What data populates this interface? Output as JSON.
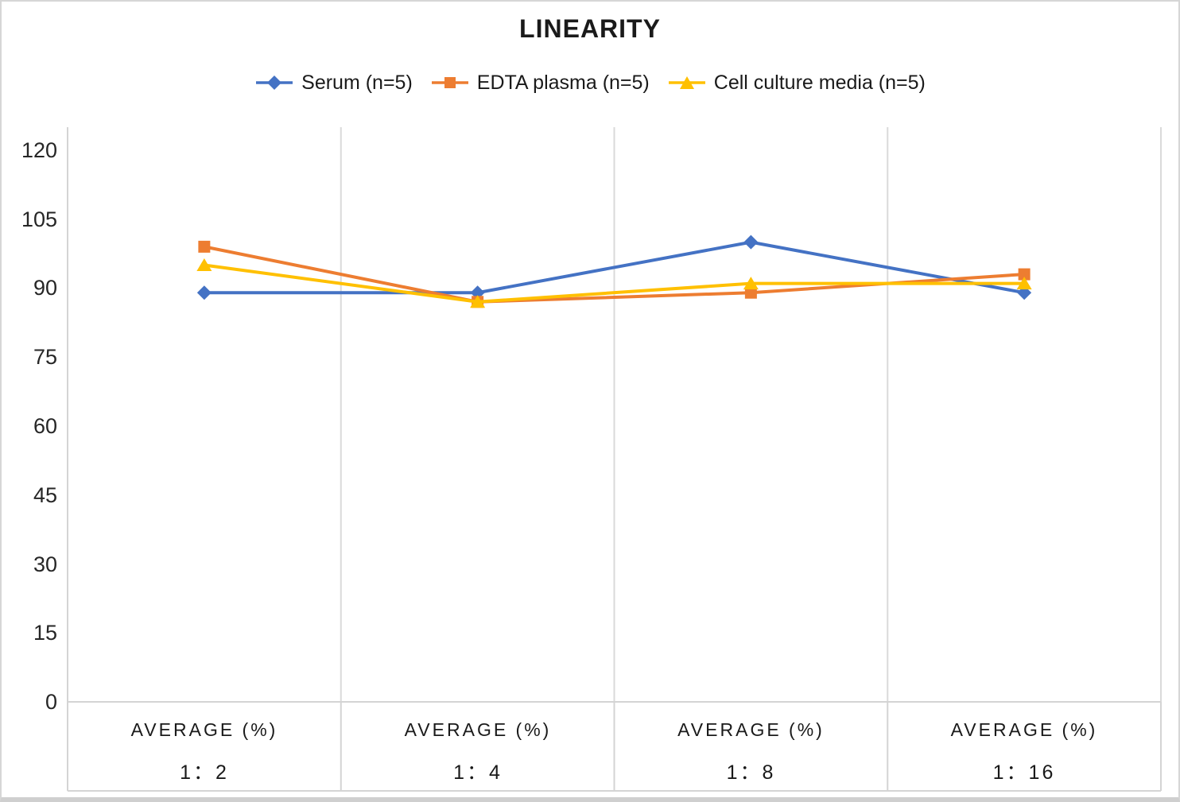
{
  "chart_data": {
    "type": "line",
    "title": "LINEARITY",
    "category_group_label": "AVERAGE (%)",
    "categories": [
      "1：2",
      "1：4",
      "1：8",
      "1：16"
    ],
    "series": [
      {
        "name": "Serum (n=5)",
        "marker": "diamond",
        "color": "#4472C4",
        "values": [
          89,
          89,
          100,
          89
        ]
      },
      {
        "name": "EDTA plasma (n=5)",
        "marker": "square",
        "color": "#ED7D31",
        "values": [
          99,
          87,
          89,
          93
        ]
      },
      {
        "name": "Cell culture media (n=5)",
        "marker": "triangle",
        "color": "#FFC000",
        "values": [
          95,
          87,
          91,
          91
        ]
      }
    ],
    "ylim": [
      0,
      125
    ],
    "yticks": [
      0,
      15,
      30,
      45,
      60,
      75,
      90,
      105,
      120
    ],
    "grid": {
      "vertical": true,
      "horizontal": false
    },
    "legend_position": "top-center",
    "colors": {
      "axis_line": "#d4d4d4",
      "gridline": "#dadada",
      "text": "#1f1f1f",
      "background": "#ffffff"
    }
  }
}
